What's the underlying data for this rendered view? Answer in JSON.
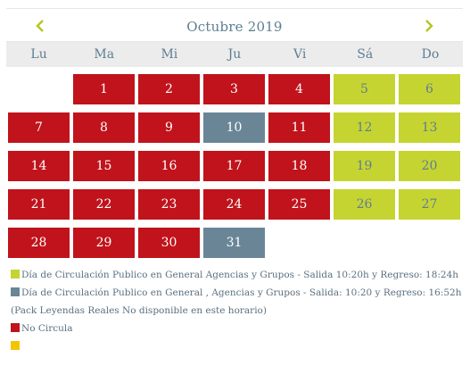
{
  "calendar": {
    "month_title": "Octubre 2019",
    "prev_icon": "chevron-left-icon",
    "next_icon": "chevron-right-icon",
    "weekdays": [
      "Lu",
      "Ma",
      "Mi",
      "Ju",
      "Vi",
      "Sá",
      "Do"
    ],
    "days": [
      {
        "label": "",
        "status": "empty"
      },
      {
        "label": "1",
        "status": "no-circula"
      },
      {
        "label": "2",
        "status": "no-circula"
      },
      {
        "label": "3",
        "status": "no-circula"
      },
      {
        "label": "4",
        "status": "no-circula"
      },
      {
        "label": "5",
        "status": "general-agencias"
      },
      {
        "label": "6",
        "status": "general-agencias"
      },
      {
        "label": "7",
        "status": "no-circula"
      },
      {
        "label": "8",
        "status": "no-circula"
      },
      {
        "label": "9",
        "status": "no-circula"
      },
      {
        "label": "10",
        "status": "general-pack"
      },
      {
        "label": "11",
        "status": "no-circula"
      },
      {
        "label": "12",
        "status": "general-agencias"
      },
      {
        "label": "13",
        "status": "general-agencias"
      },
      {
        "label": "14",
        "status": "no-circula"
      },
      {
        "label": "15",
        "status": "no-circula"
      },
      {
        "label": "16",
        "status": "no-circula"
      },
      {
        "label": "17",
        "status": "no-circula"
      },
      {
        "label": "18",
        "status": "no-circula"
      },
      {
        "label": "19",
        "status": "general-agencias"
      },
      {
        "label": "20",
        "status": "general-agencias"
      },
      {
        "label": "21",
        "status": "no-circula"
      },
      {
        "label": "22",
        "status": "no-circula"
      },
      {
        "label": "23",
        "status": "no-circula"
      },
      {
        "label": "24",
        "status": "no-circula"
      },
      {
        "label": "25",
        "status": "no-circula"
      },
      {
        "label": "26",
        "status": "general-agencias"
      },
      {
        "label": "27",
        "status": "general-agencias"
      },
      {
        "label": "28",
        "status": "no-circula"
      },
      {
        "label": "29",
        "status": "no-circula"
      },
      {
        "label": "30",
        "status": "no-circula"
      },
      {
        "label": "31",
        "status": "general-pack"
      }
    ]
  },
  "legend": {
    "items": [
      {
        "color": "#c6d431",
        "text": "Día de Circulación Publico en General Agencias y Grupos - Salida 10:20h y Regreso: 18:24h"
      },
      {
        "color": "#6a8696",
        "text": "Día de Circulación Publico en General , Agencias y Grupos - Salida: 10:20 y Regreso: 16:52h (Pack Leyendas Reales No disponible en este horario)"
      },
      {
        "color": "#c0131b",
        "text": "No Circula"
      },
      {
        "color": "#f5c400",
        "text": ""
      }
    ]
  },
  "colors": {
    "no_circula": "#c0131b",
    "general_pack": "#6a8696",
    "general_agencias": "#c6d431",
    "accent_chevron": "#b5c51f",
    "title": "#5e7e93"
  }
}
